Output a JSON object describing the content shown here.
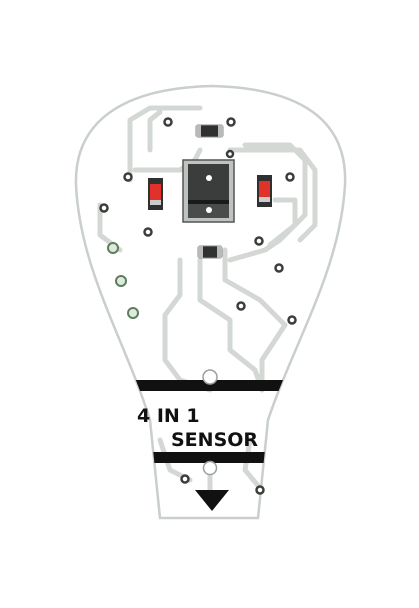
{
  "board": {
    "label_line1": "4 IN 1",
    "label_line2": "SENSOR",
    "colors": {
      "board_fill": "#ffffff",
      "board_edge": "#c9cfc9",
      "trace": "#d4d8d4",
      "pad": "#3a3d3a",
      "band": "#111111",
      "led_red": "#e0322a",
      "smd_body": "#2f3130",
      "sensor_frame": "#bfc3bf"
    },
    "icons": {
      "arrow": "down-triangle-icon"
    }
  }
}
